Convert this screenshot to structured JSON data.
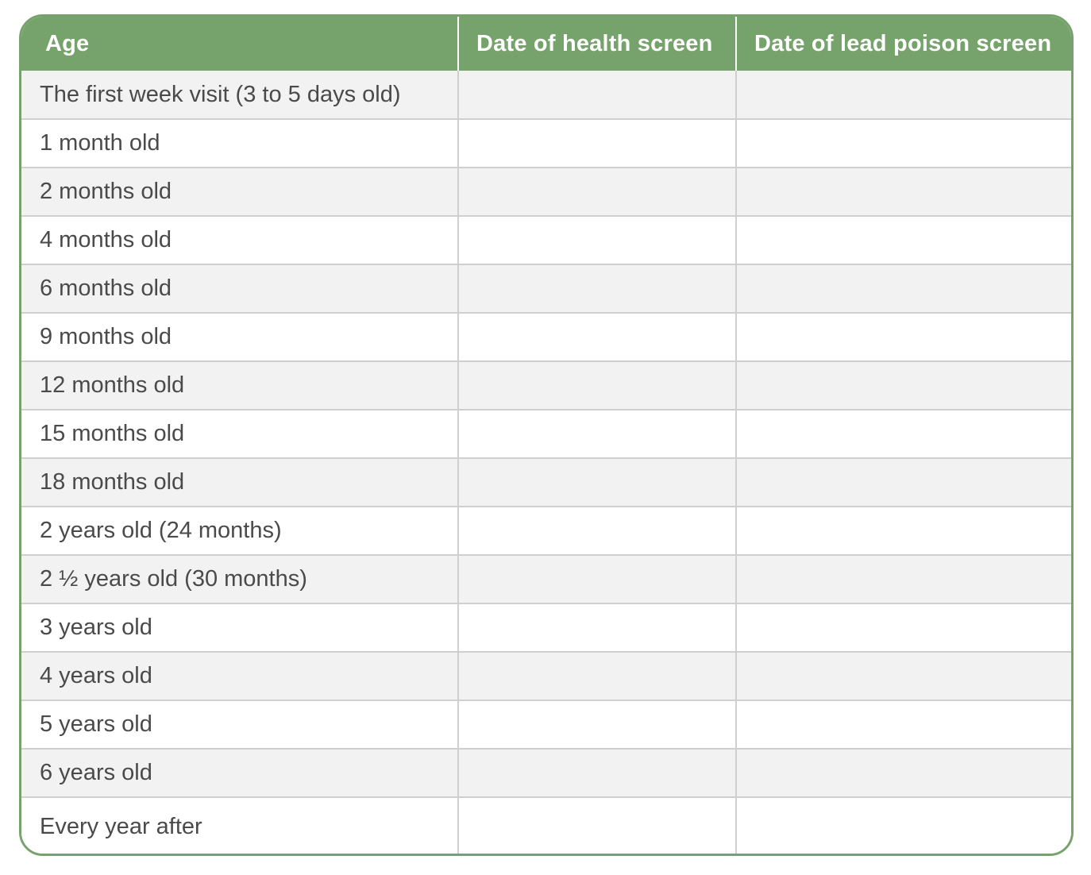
{
  "table": {
    "headers": [
      "Age",
      "Date of health screen",
      "Date of lead poison screen"
    ],
    "rows": [
      {
        "age": "The first week visit (3 to 5 days old)",
        "health_screen": "",
        "lead_screen": ""
      },
      {
        "age": "1 month old",
        "health_screen": "",
        "lead_screen": ""
      },
      {
        "age": "2 months old",
        "health_screen": "",
        "lead_screen": ""
      },
      {
        "age": "4 months old",
        "health_screen": "",
        "lead_screen": ""
      },
      {
        "age": "6 months old",
        "health_screen": "",
        "lead_screen": ""
      },
      {
        "age": "9 months old",
        "health_screen": "",
        "lead_screen": ""
      },
      {
        "age": "12 months old",
        "health_screen": "",
        "lead_screen": ""
      },
      {
        "age": "15 months old",
        "health_screen": "",
        "lead_screen": ""
      },
      {
        "age": "18 months old",
        "health_screen": "",
        "lead_screen": ""
      },
      {
        "age": "2 years old (24 months)",
        "health_screen": "",
        "lead_screen": ""
      },
      {
        "age": "2 ½ years old (30 months)",
        "health_screen": "",
        "lead_screen": ""
      },
      {
        "age": "3 years old",
        "health_screen": "",
        "lead_screen": ""
      },
      {
        "age": "4 years old",
        "health_screen": "",
        "lead_screen": ""
      },
      {
        "age": "5 years old",
        "health_screen": "",
        "lead_screen": ""
      },
      {
        "age": "6 years old",
        "health_screen": "",
        "lead_screen": ""
      },
      {
        "age": "Every year after",
        "health_screen": "",
        "lead_screen": ""
      }
    ]
  },
  "colors": {
    "header_bg": "#76a36c",
    "header_text": "#ffffff",
    "row_alt_bg": "#f2f2f2",
    "row_bg": "#ffffff",
    "body_text": "#4a4a4a",
    "grid_line": "#cfcfcf"
  }
}
